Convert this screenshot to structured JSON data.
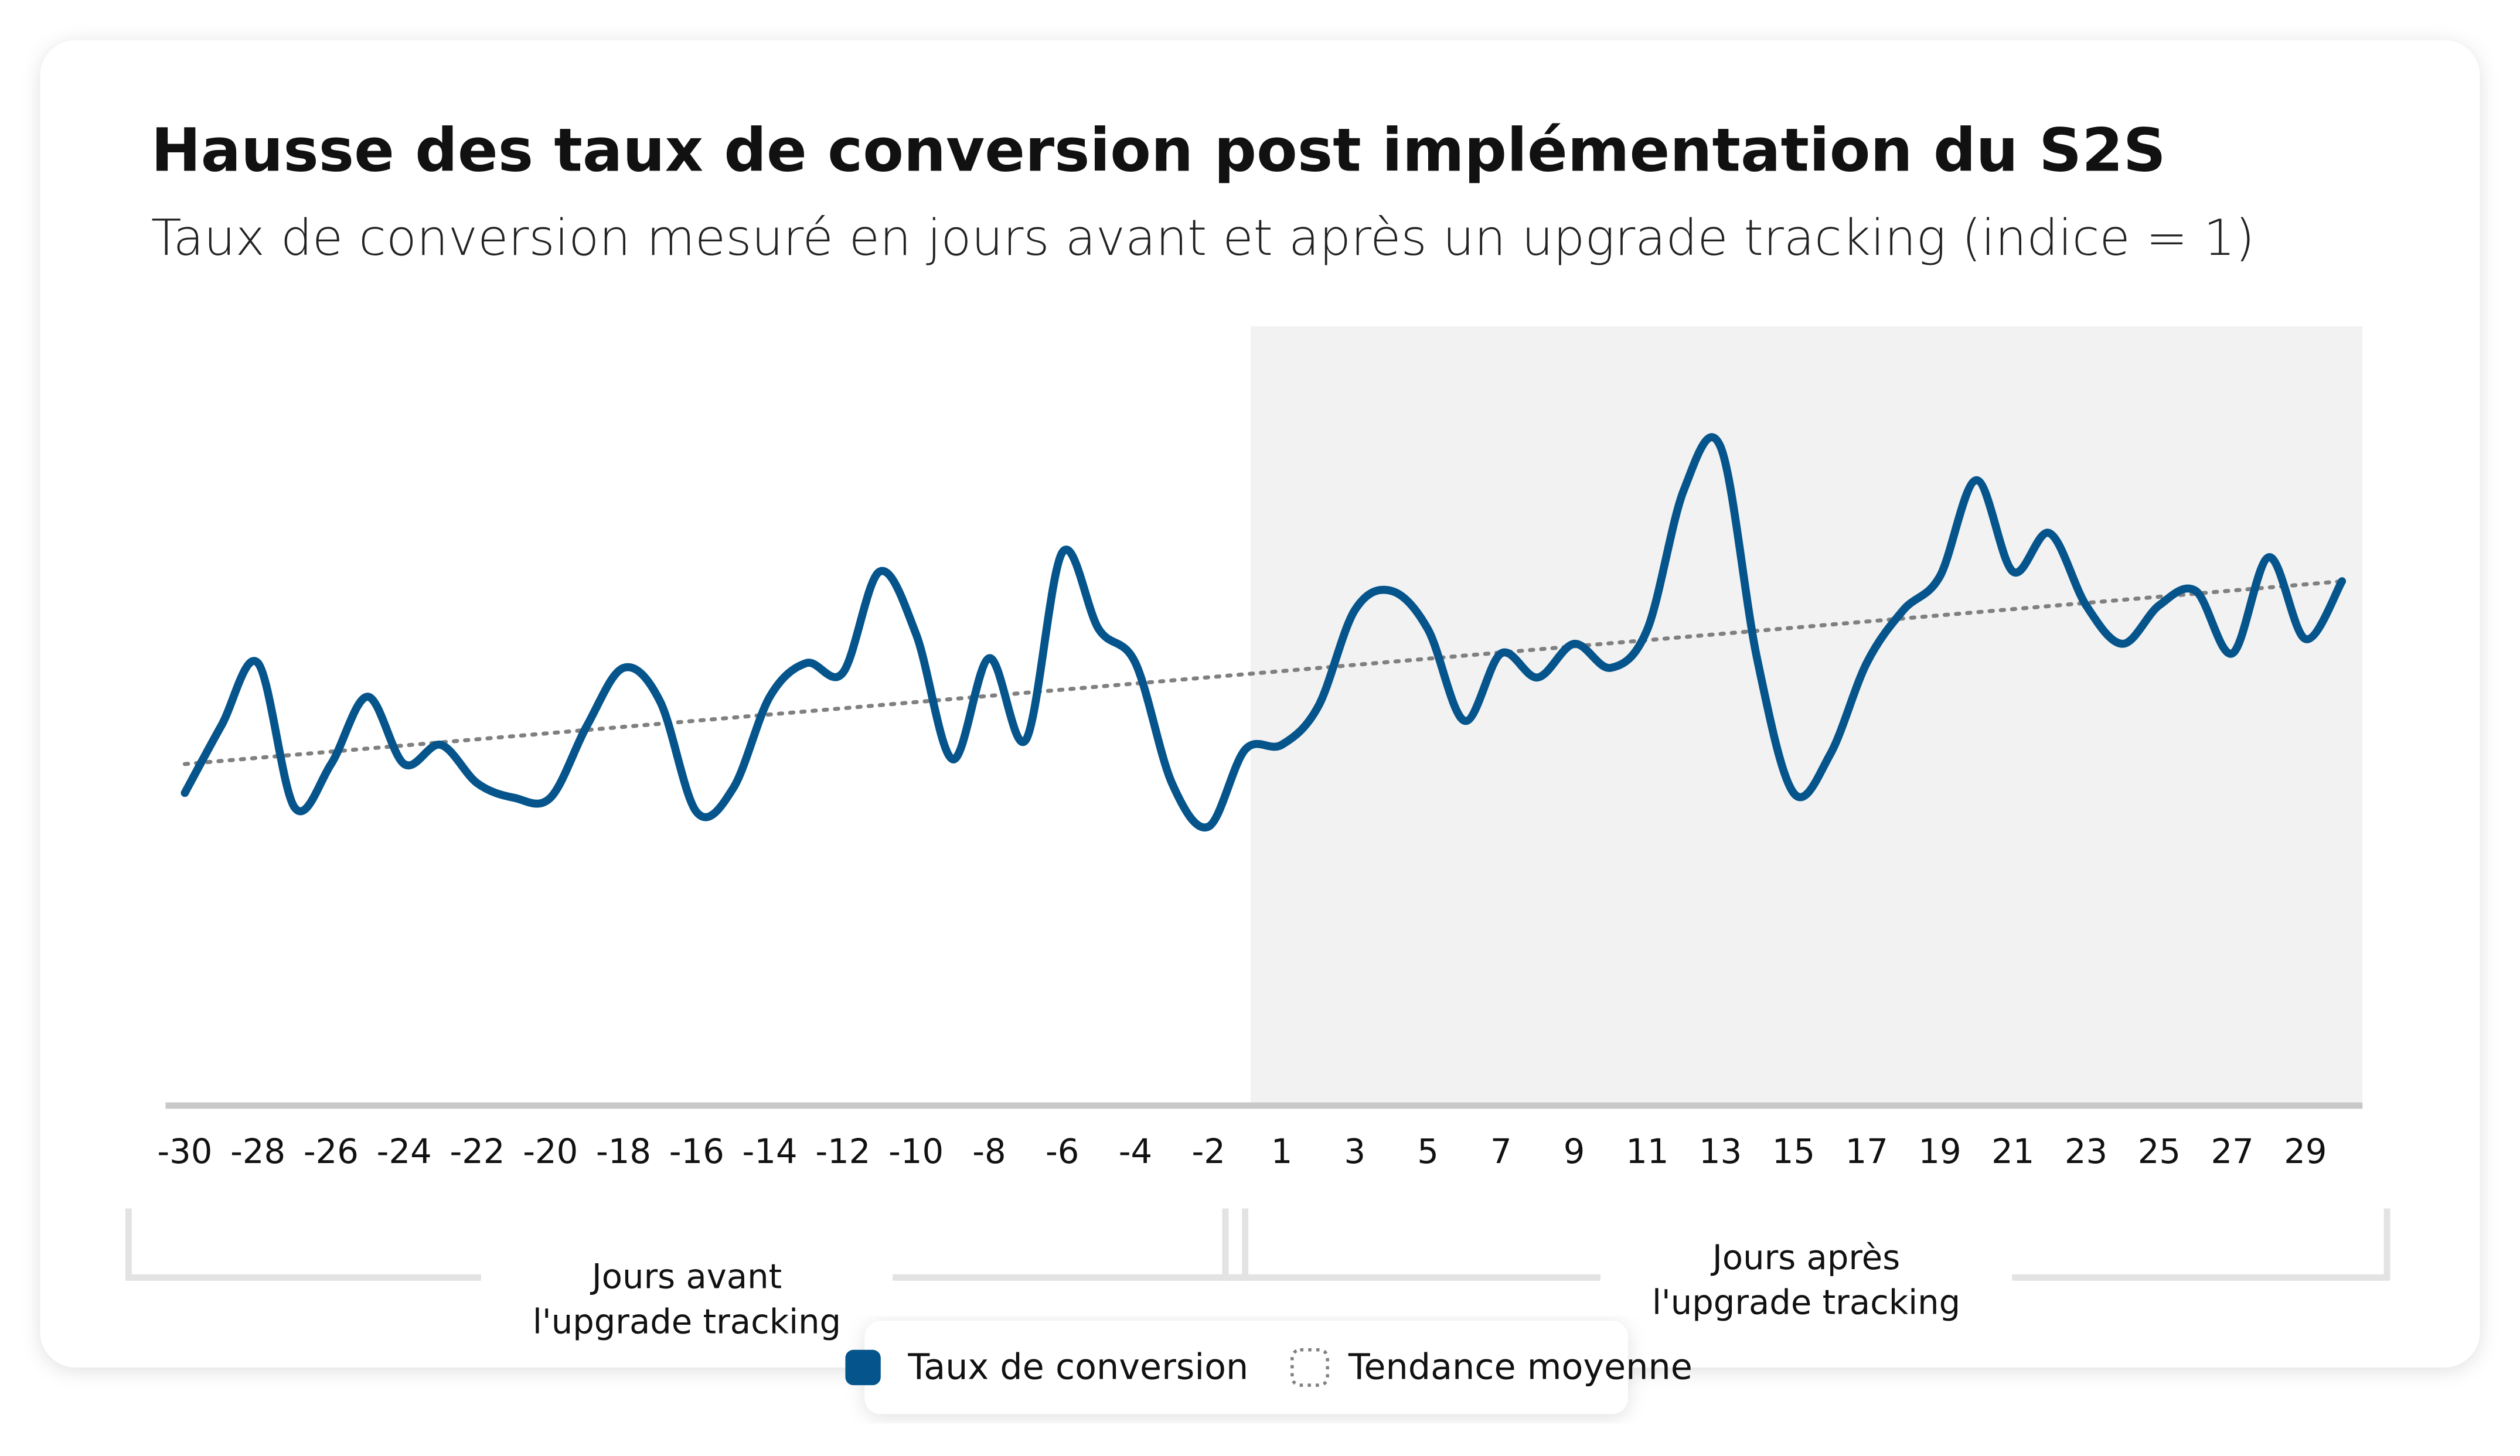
{
  "chart_data": {
    "type": "line",
    "title": "Hausse des taux de conversion post implémentation du S2S",
    "subtitle": "Taux de conversion mesuré en jours avant et après un upgrade tracking (indice = 1)",
    "categories": [
      -30,
      null,
      -28,
      null,
      -26,
      null,
      -24,
      null,
      -22,
      null,
      -20,
      null,
      -18,
      null,
      -16,
      null,
      -14,
      null,
      -12,
      null,
      -10,
      null,
      -8,
      null,
      -6,
      null,
      -4,
      null,
      -2,
      null,
      1,
      null,
      3,
      null,
      5,
      null,
      7,
      null,
      9,
      null,
      11,
      null,
      13,
      null,
      15,
      null,
      17,
      null,
      19,
      null,
      21,
      null,
      23,
      null,
      25,
      null,
      27,
      null,
      29,
      null
    ],
    "series": [
      {
        "name": "Taux de conversion",
        "color": "#05558c",
        "values": [
          0.65,
          0.79,
          0.92,
          0.62,
          0.71,
          0.85,
          0.71,
          0.75,
          0.67,
          0.64,
          0.64,
          0.79,
          0.91,
          0.84,
          0.61,
          0.66,
          0.85,
          0.92,
          0.9,
          1.11,
          0.98,
          0.72,
          0.93,
          0.76,
          1.15,
          0.99,
          0.92,
          0.67,
          0.58,
          0.74,
          0.75,
          0.83,
          1.03,
          1.07,
          0.99,
          0.8,
          0.94,
          0.89,
          0.96,
          0.91,
          0.99,
          1.28,
          1.37,
          0.93,
          0.65,
          0.73,
          0.92,
          1.03,
          1.1,
          1.3,
          1.11,
          1.19,
          1.04,
          0.96,
          1.04,
          1.07,
          0.94,
          1.14,
          0.97,
          1.09
        ]
      }
    ],
    "trend": {
      "name": "Tendance moyenne",
      "color": "#808080",
      "start": 0.71,
      "end": 1.09
    },
    "ylim": [
      0,
      1.62
    ],
    "groups": [
      {
        "label": [
          "Jours avant",
          "l'upgrade tracking"
        ],
        "from": 0,
        "to": 29
      },
      {
        "label": [
          "Jours après",
          "l'upgrade tracking"
        ],
        "from": 30,
        "to": 59
      }
    ],
    "shade_group": 1
  }
}
